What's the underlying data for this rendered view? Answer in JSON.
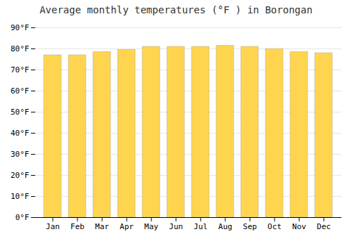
{
  "chart_data": {
    "type": "bar",
    "title": "Average monthly temperatures (°F ) in Borongan",
    "categories": [
      "Jan",
      "Feb",
      "Mar",
      "Apr",
      "May",
      "Jun",
      "Jul",
      "Aug",
      "Sep",
      "Oct",
      "Nov",
      "Dec"
    ],
    "values": [
      77,
      77,
      78.5,
      79.5,
      81,
      81,
      81,
      81.5,
      81,
      80,
      78.5,
      78
    ],
    "color": "#FFD54F",
    "ylim": [
      0,
      90
    ],
    "yticks": [
      {
        "value": 0,
        "label": "0°F"
      },
      {
        "value": 10,
        "label": "10°F"
      },
      {
        "value": 20,
        "label": "20°F"
      },
      {
        "value": 30,
        "label": "30°F"
      },
      {
        "value": 40,
        "label": "40°F"
      },
      {
        "value": 50,
        "label": "50°F"
      },
      {
        "value": 60,
        "label": "60°F"
      },
      {
        "value": 70,
        "label": "70°F"
      },
      {
        "value": 80,
        "label": "80°F"
      },
      {
        "value": 90,
        "label": "90°F"
      }
    ],
    "grid": true
  }
}
